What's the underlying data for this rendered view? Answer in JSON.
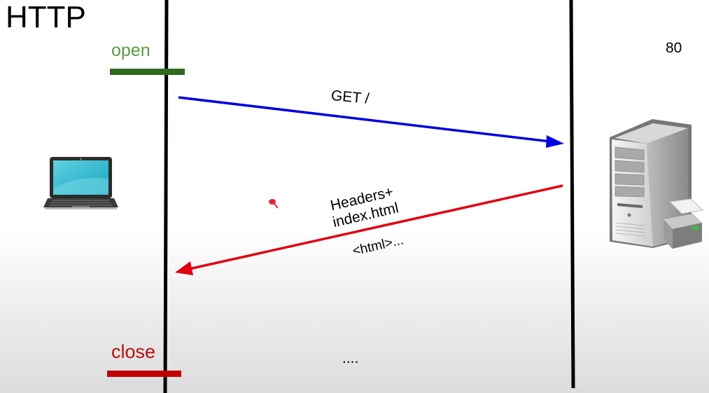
{
  "title": "HTTP",
  "client": {
    "open_label": "open",
    "close_label": "close",
    "device_icon": "laptop-icon"
  },
  "server": {
    "port_label": "80",
    "device_icon": "server-tower-icon"
  },
  "messages": {
    "request_label": "GET /",
    "response_label_line1": "Headers+",
    "response_label_line2": "index.html",
    "response_body_label": "<html>...",
    "continuation_label": "...."
  },
  "colors": {
    "open": "#2e6b1e",
    "open_text": "#5b9a45",
    "close": "#c00000",
    "close_text": "#b8100f",
    "request_arrow": "#0000e0",
    "response_arrow": "#e00010",
    "timeline": "#000000"
  }
}
